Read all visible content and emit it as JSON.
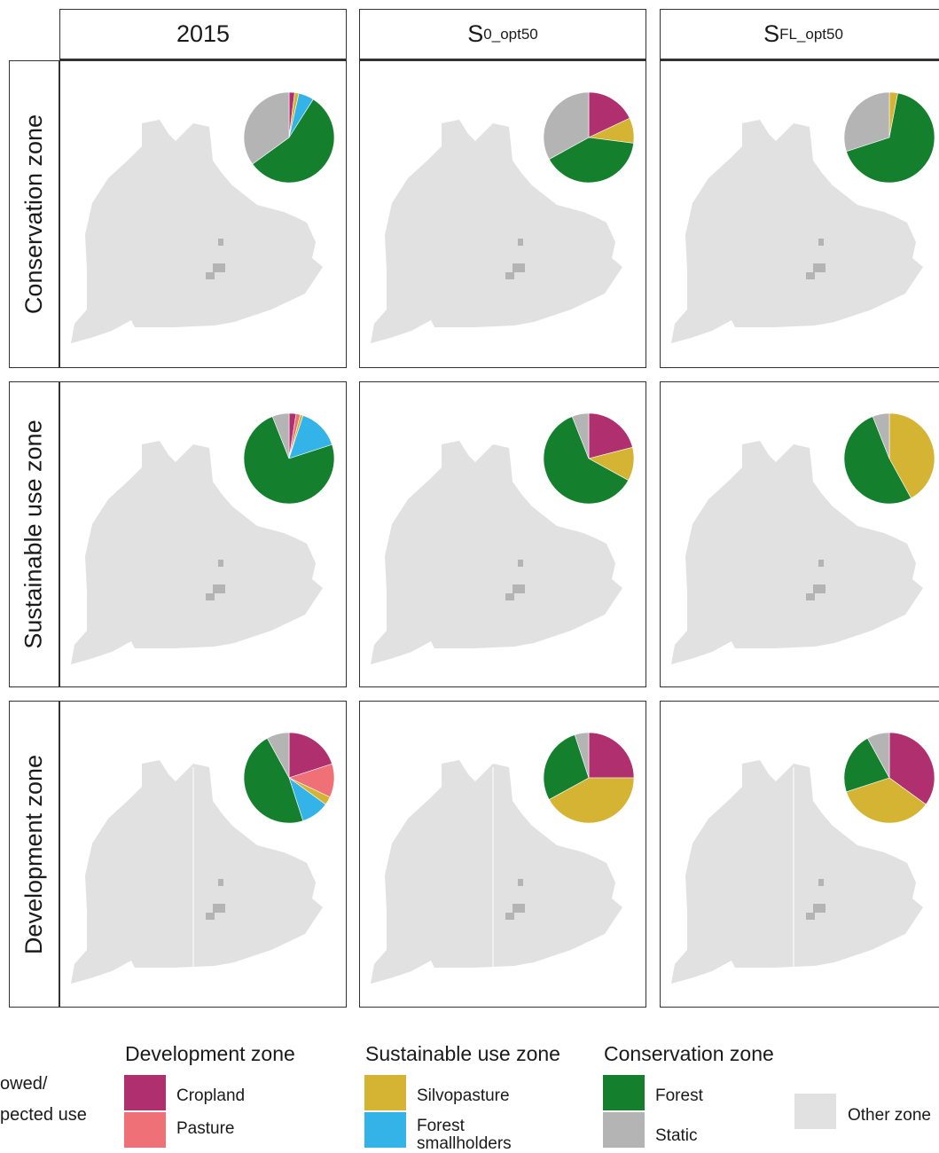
{
  "columns": [
    {
      "base": "2015",
      "sub": ""
    },
    {
      "base": "S",
      "sub": "0_opt50"
    },
    {
      "base": "S",
      "sub": "FL_opt50"
    }
  ],
  "rows": [
    "Conservation zone",
    "Sustainable use zone",
    "Development zone"
  ],
  "colors": {
    "cropland": "#B0306F",
    "pasture": "#F07078",
    "silvopasture": "#D4B432",
    "forest_smallholders": "#33B3E8",
    "forest": "#147F2D",
    "static": "#B4B4B4",
    "other": "#E1E1E1"
  },
  "pies": [
    [
      [
        {
          "c": "cropland",
          "v": 2
        },
        {
          "c": "silvopasture",
          "v": 1.5
        },
        {
          "c": "forest_smallholders",
          "v": 5.5
        },
        {
          "c": "forest",
          "v": 56
        },
        {
          "c": "static",
          "v": 35
        }
      ],
      [
        {
          "c": "cropland",
          "v": 18
        },
        {
          "c": "silvopasture",
          "v": 9
        },
        {
          "c": "forest",
          "v": 40
        },
        {
          "c": "static",
          "v": 33
        }
      ],
      [
        {
          "c": "silvopasture",
          "v": 3
        },
        {
          "c": "forest",
          "v": 67
        },
        {
          "c": "static",
          "v": 30
        }
      ]
    ],
    [
      [
        {
          "c": "cropland",
          "v": 2.5
        },
        {
          "c": "pasture",
          "v": 1.5
        },
        {
          "c": "silvopasture",
          "v": 1
        },
        {
          "c": "forest_smallholders",
          "v": 15
        },
        {
          "c": "forest",
          "v": 74
        },
        {
          "c": "static",
          "v": 6
        }
      ],
      [
        {
          "c": "cropland",
          "v": 21
        },
        {
          "c": "silvopasture",
          "v": 12
        },
        {
          "c": "forest",
          "v": 61
        },
        {
          "c": "static",
          "v": 6
        }
      ],
      [
        {
          "c": "silvopasture",
          "v": 42
        },
        {
          "c": "forest",
          "v": 52
        },
        {
          "c": "static",
          "v": 6
        }
      ]
    ],
    [
      [
        {
          "c": "cropland",
          "v": 20
        },
        {
          "c": "pasture",
          "v": 12
        },
        {
          "c": "silvopasture",
          "v": 3
        },
        {
          "c": "forest_smallholders",
          "v": 10
        },
        {
          "c": "forest",
          "v": 47
        },
        {
          "c": "static",
          "v": 8
        }
      ],
      [
        {
          "c": "cropland",
          "v": 25
        },
        {
          "c": "silvopasture",
          "v": 42
        },
        {
          "c": "forest",
          "v": 28
        },
        {
          "c": "static",
          "v": 5
        }
      ],
      [
        {
          "c": "cropland",
          "v": 35
        },
        {
          "c": "silvopasture",
          "v": 35
        },
        {
          "c": "forest",
          "v": 22
        },
        {
          "c": "static",
          "v": 8
        }
      ]
    ]
  ],
  "legend": {
    "left_label_line1": "owed/",
    "left_label_line2": "pected use",
    "groups": [
      {
        "title": "Development zone",
        "items": [
          {
            "label": "Cropland",
            "color": "#B0306F"
          },
          {
            "label": "Pasture",
            "color": "#F07078"
          }
        ]
      },
      {
        "title": "Sustainable use zone",
        "items": [
          {
            "label": "Silvopasture",
            "color": "#D4B432"
          },
          {
            "label_line1": "Forest",
            "label_line2": "smallholders",
            "color": "#33B3E8"
          }
        ]
      },
      {
        "title": "Conservation zone",
        "items": [
          {
            "label": "Forest",
            "color": "#147F2D"
          },
          {
            "label": "Static",
            "color": "#B4B4B4"
          }
        ]
      }
    ],
    "other": {
      "label": "Other zone",
      "color": "#E1E1E1"
    }
  }
}
